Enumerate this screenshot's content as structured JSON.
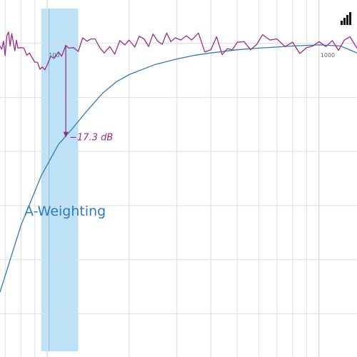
{
  "chart_data": {
    "type": "line",
    "x_scale": "log",
    "x_range": [
      67,
      1380
    ],
    "y_range": [
      -58,
      8
    ],
    "grid": true,
    "tick_labels": [
      "100",
      "1000"
    ],
    "highlight_band": {
      "x_range": [
        95,
        130
      ],
      "color": "#bde1f7"
    },
    "series": [
      {
        "name": "A-Weighting",
        "color": "#2f7bb8",
        "x": [
          67,
          80,
          95,
          110,
          125,
          140,
          160,
          180,
          200,
          250,
          300,
          350,
          400,
          500,
          600,
          700,
          800,
          1000,
          1200,
          1380
        ],
        "values": [
          -46,
          -33.7,
          -24.5,
          -18.7,
          -15.5,
          -12.5,
          -9.2,
          -7.1,
          -5.8,
          -3.9,
          -2.9,
          -2.2,
          -1.8,
          -1.2,
          -0.9,
          -0.7,
          -0.5,
          -0.3,
          -0.5,
          -1.8
        ]
      },
      {
        "name": "",
        "color": "#9a2c89",
        "x": [
          67,
          68,
          69,
          70,
          71,
          72,
          73,
          74,
          75,
          76,
          77,
          78,
          80,
          82,
          84,
          86,
          88,
          90,
          92,
          94,
          96,
          98,
          100,
          103,
          106,
          110,
          113,
          117,
          120,
          125,
          130,
          135,
          140,
          145,
          150,
          156,
          162,
          170,
          177,
          185,
          193,
          200,
          210,
          218,
          227,
          236,
          245,
          255,
          265,
          275,
          285,
          296,
          310,
          325,
          340,
          360,
          380,
          400,
          420,
          440,
          460,
          480,
          500,
          530,
          560,
          590,
          620,
          660,
          700,
          750,
          800,
          850,
          900,
          950,
          1000,
          1060,
          1120,
          1180,
          1240,
          1300,
          1380
        ],
        "values": [
          -0.5,
          -1.1,
          0.4,
          -2.3,
          1.4,
          2.1,
          -0.5,
          1.8,
          0.2,
          -1.4,
          0.6,
          -0.9,
          -0.8,
          -0.9,
          -2.2,
          -1.8,
          -2.7,
          -3.5,
          -3.5,
          -4.8,
          -4.4,
          -4.9,
          -4.0,
          -2.4,
          -2.8,
          -1.6,
          -2.4,
          -0.4,
          -0.9,
          -0.8,
          -1.5,
          1.0,
          0.4,
          0.8,
          0.8,
          -0.8,
          -1.8,
          -0.6,
          -2.0,
          0.5,
          -0.3,
          0.6,
          -0.7,
          1.3,
          0.8,
          -0.6,
          1.7,
          0.4,
          -0.2,
          1.9,
          0.3,
          1.0,
          0.6,
          1.4,
          0.6,
          1.9,
          -1.6,
          -1.2,
          1.2,
          -2.1,
          -1.0,
          -1.2,
          0.2,
          0.3,
          -1.2,
          -0.2,
          1.6,
          0.6,
          0.8,
          -0.6,
          0.2,
          -1.9,
          -0.8,
          -0.5,
          0.3,
          -0.6,
          0.5,
          -1.3,
          0.6,
          1.2,
          -0.9
        ]
      }
    ],
    "labels": {
      "curve": "A-Weighting",
      "annotation": "−17.3 dB"
    },
    "annotation": {
      "x": 117,
      "from_y": -0.5,
      "to_y": -17.3,
      "color": "#9a2c89"
    }
  }
}
